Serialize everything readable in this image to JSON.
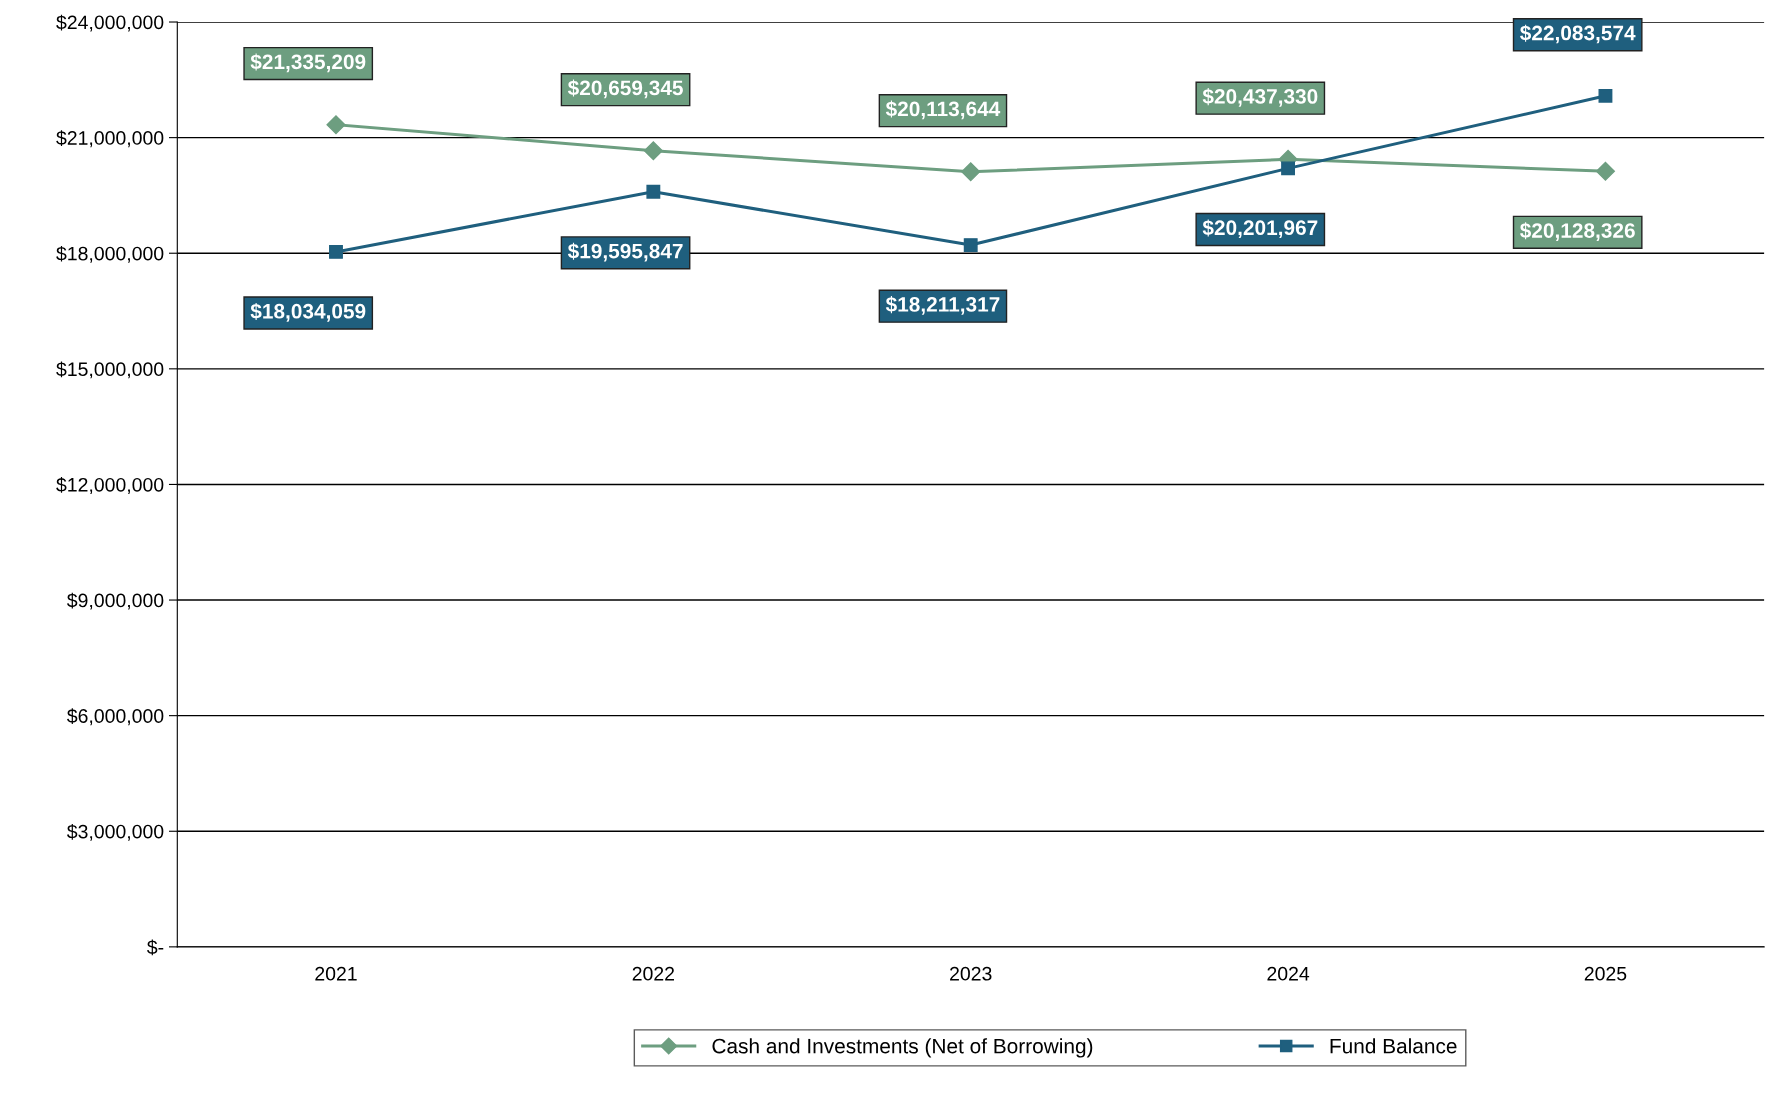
{
  "chart_data": {
    "type": "line",
    "categories": [
      "2021",
      "2022",
      "2023",
      "2024",
      "2025"
    ],
    "series": [
      {
        "name": "Cash and Investments (Net of Borrowing)",
        "color": "#6d9e80",
        "marker": "diamond",
        "values": [
          21335209,
          20659345,
          20113644,
          20437330,
          20128326
        ],
        "value_labels": [
          "$21,335,209",
          "$20,659,345",
          "$20,113,644",
          "$20,437,330",
          "$20,128,326"
        ]
      },
      {
        "name": "Fund Balance",
        "color": "#1f5f7e",
        "marker": "square",
        "values": [
          18034059,
          19595847,
          18211317,
          20201967,
          22083574
        ],
        "value_labels": [
          "$18,034,059",
          "$19,595,847",
          "$18,211,317",
          "$20,201,967",
          "$22,083,574"
        ]
      }
    ],
    "ylim": [
      0,
      24000000
    ],
    "yticks": [
      {
        "value": 0,
        "label": "$-"
      },
      {
        "value": 3000000,
        "label": "$3,000,000"
      },
      {
        "value": 6000000,
        "label": "$6,000,000"
      },
      {
        "value": 9000000,
        "label": "$9,000,000"
      },
      {
        "value": 12000000,
        "label": "$12,000,000"
      },
      {
        "value": 15000000,
        "label": "$15,000,000"
      },
      {
        "value": 18000000,
        "label": "$18,000,000"
      },
      {
        "value": 21000000,
        "label": "$21,000,000"
      },
      {
        "value": 24000000,
        "label": "$24,000,000"
      }
    ],
    "grid": "y",
    "legend": "bottom",
    "line_style": "solid"
  }
}
